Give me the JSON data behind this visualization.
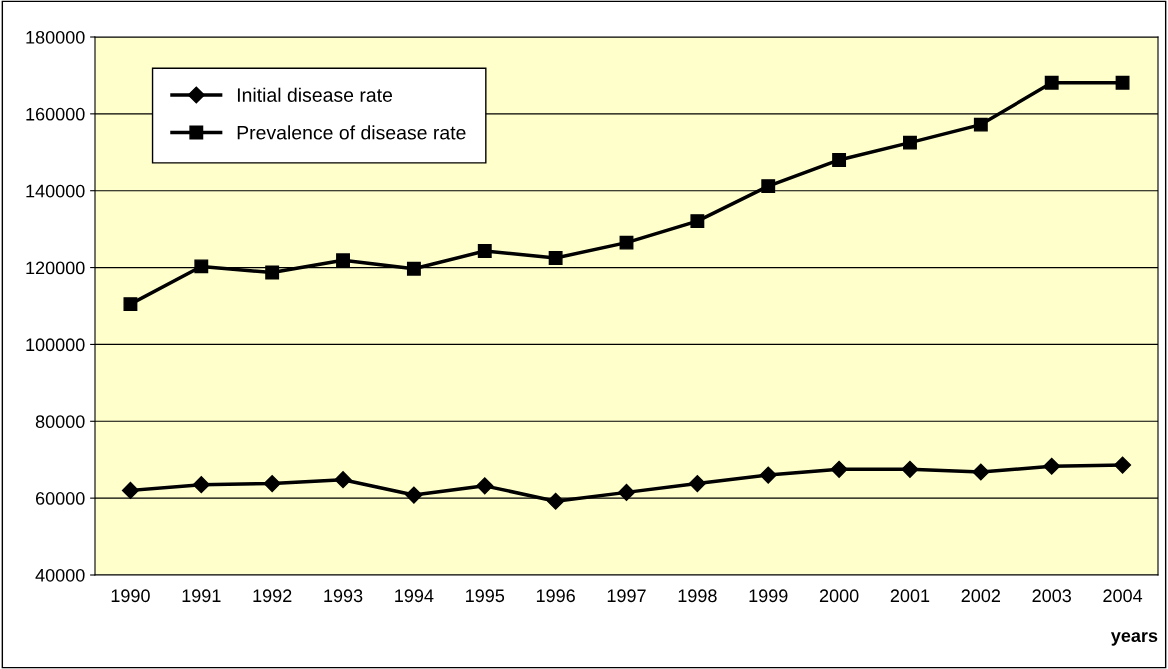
{
  "chart_data": {
    "type": "line",
    "xlabel": "years",
    "categories": [
      "1990",
      "1991",
      "1992",
      "1993",
      "1994",
      "1995",
      "1996",
      "1997",
      "1998",
      "1999",
      "2000",
      "2001",
      "2002",
      "2003",
      "2004"
    ],
    "series": [
      {
        "name": "Initial disease rate",
        "color": "#000000",
        "marker": "diamond",
        "values": [
          62000,
          63500,
          63800,
          64800,
          60800,
          63200,
          59200,
          61500,
          63800,
          66000,
          67500,
          67500,
          66800,
          68300,
          68600
        ]
      },
      {
        "name": "Prevalence of disease rate",
        "color": "#000000",
        "marker": "square",
        "values": [
          110500,
          120300,
          118700,
          121900,
          119700,
          124300,
          122500,
          126500,
          132100,
          141200,
          148000,
          152500,
          157200,
          168100,
          168100
        ]
      }
    ],
    "ylim": [
      40000,
      180000
    ],
    "yticks": [
      40000,
      60000,
      80000,
      100000,
      120000,
      140000,
      160000,
      180000
    ],
    "grid": "y",
    "legend": "top left",
    "line_style": "solid"
  }
}
